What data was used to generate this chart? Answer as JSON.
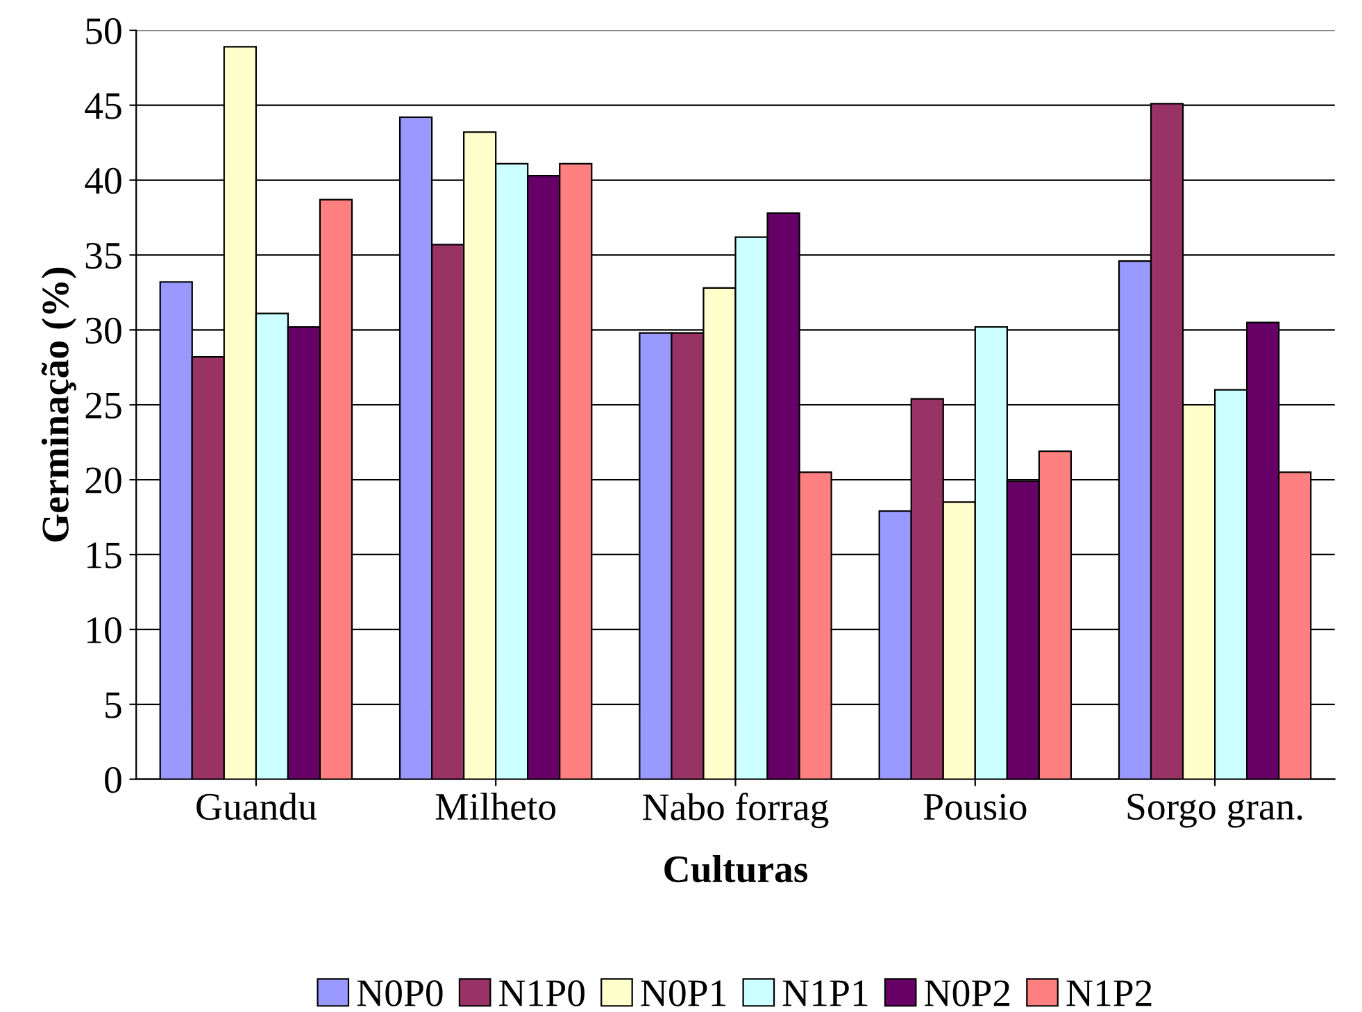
{
  "chart_data": {
    "type": "bar",
    "xlabel": "Culturas",
    "ylabel": "Germinação (%)",
    "categories": [
      "Guandu",
      "Milheto",
      "Nabo forrag",
      "Pousio",
      "Sorgo gran."
    ],
    "series": [
      {
        "name": "N0P0",
        "color": "#9999ff",
        "values": [
          33.2,
          44.2,
          29.8,
          17.9,
          34.6
        ]
      },
      {
        "name": "N1P0",
        "color": "#993366",
        "values": [
          28.2,
          35.7,
          29.8,
          25.4,
          45.1
        ]
      },
      {
        "name": "N0P1",
        "color": "#ffffcc",
        "values": [
          48.9,
          43.2,
          32.8,
          18.5,
          25.0
        ]
      },
      {
        "name": "N1P1",
        "color": "#ccffff",
        "values": [
          31.1,
          41.1,
          36.2,
          30.2,
          26.0
        ]
      },
      {
        "name": "N0P2",
        "color": "#660066",
        "values": [
          30.2,
          40.3,
          37.8,
          19.9,
          30.5
        ]
      },
      {
        "name": "N1P2",
        "color": "#ff8080",
        "values": [
          38.7,
          41.1,
          20.5,
          21.9,
          20.5
        ]
      }
    ],
    "ylim": [
      0,
      50
    ],
    "yticks": [
      0,
      5,
      10,
      15,
      20,
      25,
      30,
      35,
      40,
      45,
      50
    ],
    "grid": "y",
    "legend": "bottom"
  }
}
